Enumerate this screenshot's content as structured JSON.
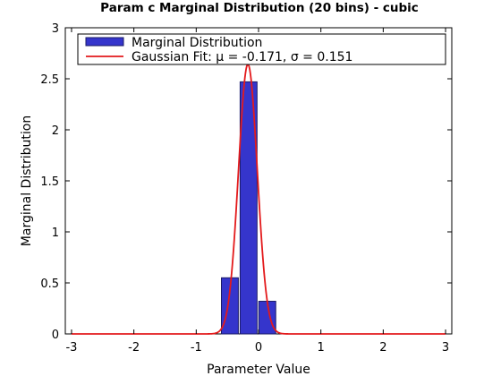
{
  "chart_data": {
    "type": "bar",
    "title": "Param c Marginal Distribution (20 bins) - cubic",
    "xlabel": "Parameter Value",
    "ylabel": "Marginal Distribution",
    "xlim": [
      -3.1,
      3.1
    ],
    "ylim": [
      0,
      3
    ],
    "xticks": [
      -3,
      -2,
      -1,
      0,
      1,
      2,
      3
    ],
    "xtick_labels": [
      "-3",
      "-2",
      "-1",
      "0",
      "1",
      "2",
      "3"
    ],
    "yticks": [
      0,
      0.5,
      1,
      1.5,
      2,
      2.5,
      3
    ],
    "ytick_labels": [
      "0",
      "0.5",
      "1",
      "1.5",
      "2",
      "2.5",
      "3"
    ],
    "grid": false,
    "legend_position": "top",
    "series": [
      {
        "name": "Marginal Distribution",
        "kind": "bar",
        "color": "#3535cc",
        "edge_color": "#1a1a66",
        "bin_width": 0.3,
        "x": [
          -0.46,
          -0.16,
          0.14
        ],
        "values": [
          0.55,
          2.47,
          0.32
        ]
      },
      {
        "name": "Gaussian Fit: μ = -0.171, σ  = 0.151",
        "kind": "line",
        "color": "#e31a1c",
        "mu": -0.171,
        "sigma": 0.151
      }
    ]
  }
}
